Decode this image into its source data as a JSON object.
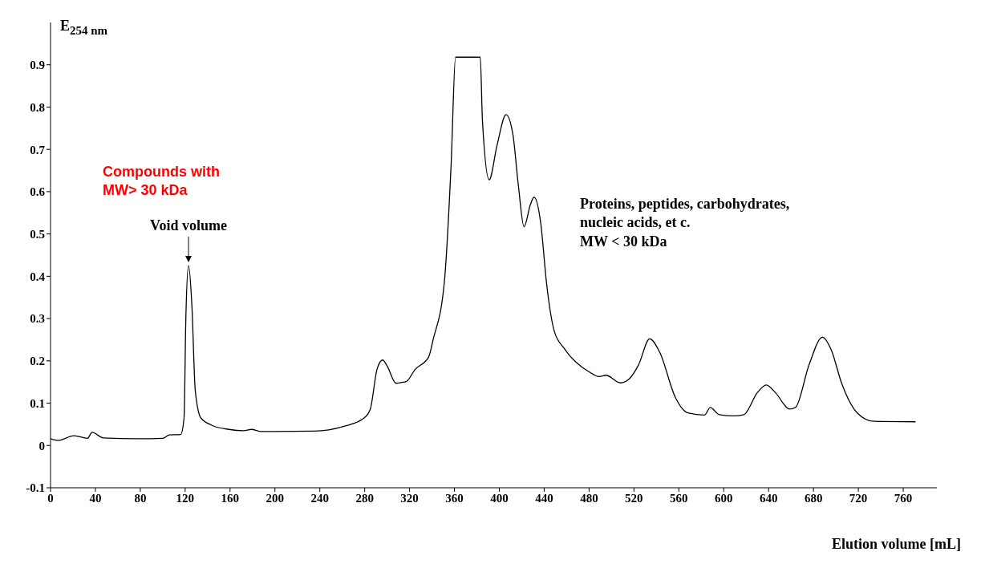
{
  "chart_data": {
    "type": "line",
    "xlabel": "Elution volume [mL]",
    "ylabel": "E$_{254 nm}$",
    "xlim": [
      0,
      790
    ],
    "xticks": [
      0,
      40,
      80,
      120,
      160,
      200,
      240,
      280,
      320,
      360,
      400,
      440,
      480,
      520,
      560,
      600,
      640,
      680,
      720,
      760
    ],
    "ylim": [
      -0.1,
      1.0
    ],
    "yticks": [
      -0.1,
      0,
      0.1,
      0.2,
      0.3,
      0.4,
      0.5,
      0.6,
      0.7,
      0.8,
      0.9
    ],
    "grid": false,
    "legend": false,
    "annotations": [
      "Compounds with\nMW> 30 kDa",
      {
        "text": "Void volume",
        "x": 123,
        "y": 0.425
      },
      "Proteins, peptides, carbohydrates,\nnucleic acids, et c.\nMW < 30 kDa"
    ],
    "series": [
      {
        "color": "#000000",
        "x": [
          0,
          6.5,
          21,
          33,
          37,
          47,
          78,
          100,
          106,
          116,
          119,
          120.6,
          123,
          126,
          129,
          134,
          143.6,
          159,
          172,
          179,
          188,
          235,
          261,
          279,
          285,
          291,
          296,
          300,
          308,
          313,
          317,
          325,
          337,
          341,
          351,
          357,
          361,
          383,
          385,
          391,
          398,
          406,
          412,
          417,
          422,
          428,
          431,
          437,
          442,
          449,
          458,
          480,
          489,
          495,
          508,
          516,
          524,
          534,
          543,
          557,
          568,
          583,
          588,
          596,
          609,
          618,
          630,
          638,
          646,
          659,
          664,
          676,
          688,
          696,
          705,
          719,
          734,
          771
        ],
        "values": [
          0.016,
          0.012,
          0.023,
          0.017,
          0.031,
          0.018,
          0.016,
          0.017,
          0.025,
          0.026,
          0.065,
          0.3,
          0.425,
          0.33,
          0.13,
          0.065,
          0.048,
          0.038,
          0.035,
          0.038,
          0.033,
          0.034,
          0.045,
          0.064,
          0.086,
          0.18,
          0.202,
          0.188,
          0.147,
          0.149,
          0.151,
          0.18,
          0.209,
          0.25,
          0.386,
          0.662,
          0.918,
          0.918,
          0.766,
          0.628,
          0.71,
          0.782,
          0.737,
          0.614,
          0.517,
          0.572,
          0.587,
          0.524,
          0.386,
          0.27,
          0.229,
          0.174,
          0.163,
          0.166,
          0.148,
          0.158,
          0.19,
          0.252,
          0.22,
          0.113,
          0.077,
          0.072,
          0.09,
          0.073,
          0.07,
          0.073,
          0.125,
          0.143,
          0.125,
          0.086,
          0.09,
          0.19,
          0.256,
          0.225,
          0.148,
          0.077,
          0.057,
          0.056
        ]
      }
    ]
  }
}
